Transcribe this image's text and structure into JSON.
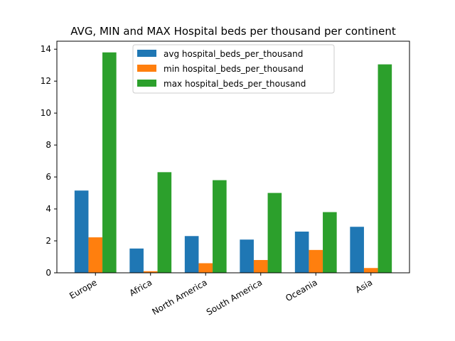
{
  "chart_data": {
    "type": "bar",
    "title": "AVG, MIN and MAX Hospital beds per thousand per continent",
    "xlabel": "",
    "ylabel": "",
    "categories": [
      "Europe",
      "Africa",
      "North America",
      "South America",
      "Oceania",
      "Asia"
    ],
    "series": [
      {
        "name": "avg hospital_beds_per_thousand",
        "color": "#1f77b4",
        "values": [
          5.15,
          1.52,
          2.3,
          2.08,
          2.58,
          2.88
        ]
      },
      {
        "name": "min hospital_beds_per_thousand",
        "color": "#ff7f0e",
        "values": [
          2.22,
          0.1,
          0.6,
          0.8,
          1.43,
          0.3
        ]
      },
      {
        "name": "max hospital_beds_per_thousand",
        "color": "#2ca02c",
        "values": [
          13.8,
          6.3,
          5.8,
          5.0,
          3.8,
          13.05
        ]
      }
    ],
    "ylim": [
      0,
      14.5
    ],
    "yticks": [
      "0",
      "2",
      "4",
      "6",
      "8",
      "10",
      "12",
      "14"
    ],
    "legend": "upper-center",
    "grid": false
  }
}
